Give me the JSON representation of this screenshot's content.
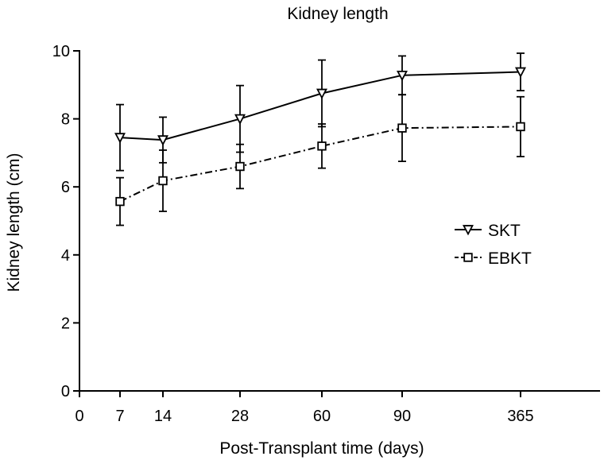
{
  "chart_data": {
    "type": "line",
    "title": "Kidney length",
    "xlabel": "Post-Transplant time (days)",
    "ylabel": "Kidney length (cm)",
    "categories": [
      "0",
      "7",
      "14",
      "28",
      "60",
      "90",
      "365"
    ],
    "ylim": [
      0,
      10
    ],
    "yticks": [
      0,
      2,
      4,
      6,
      8,
      10
    ],
    "grid": false,
    "legend_position": "right",
    "series": [
      {
        "name": "SKT",
        "marker": "triangle-down",
        "line_style": "solid",
        "x": [
          "7",
          "14",
          "28",
          "60",
          "90",
          "365"
        ],
        "values": [
          7.45,
          7.38,
          8.0,
          8.75,
          9.28,
          9.38
        ],
        "error": [
          0.97,
          0.67,
          0.98,
          0.98,
          0.57,
          0.55
        ]
      },
      {
        "name": "EBKT",
        "marker": "square",
        "line_style": "dash-dot",
        "x": [
          "7",
          "14",
          "28",
          "60",
          "90",
          "365"
        ],
        "values": [
          5.57,
          6.18,
          6.6,
          7.2,
          7.73,
          7.77
        ],
        "error": [
          0.7,
          0.9,
          0.65,
          0.65,
          0.98,
          0.88
        ]
      }
    ]
  }
}
